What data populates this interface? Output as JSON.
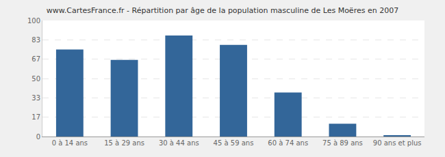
{
  "chart_data": {
    "type": "bar",
    "title": "www.CartesFrance.fr - Répartition par âge de la population masculine de Les Moëres en 2007",
    "categories": [
      "0 à 14 ans",
      "15 à 29 ans",
      "30 à 44 ans",
      "45 à 59 ans",
      "60 à 74 ans",
      "75 à 89 ans",
      "90 ans et plus"
    ],
    "values": [
      75,
      66,
      87,
      79,
      38,
      11,
      1
    ],
    "color": "#336699",
    "ylim": [
      0,
      100
    ],
    "yticks": [
      0,
      17,
      33,
      50,
      67,
      83,
      100
    ],
    "grid": true
  }
}
